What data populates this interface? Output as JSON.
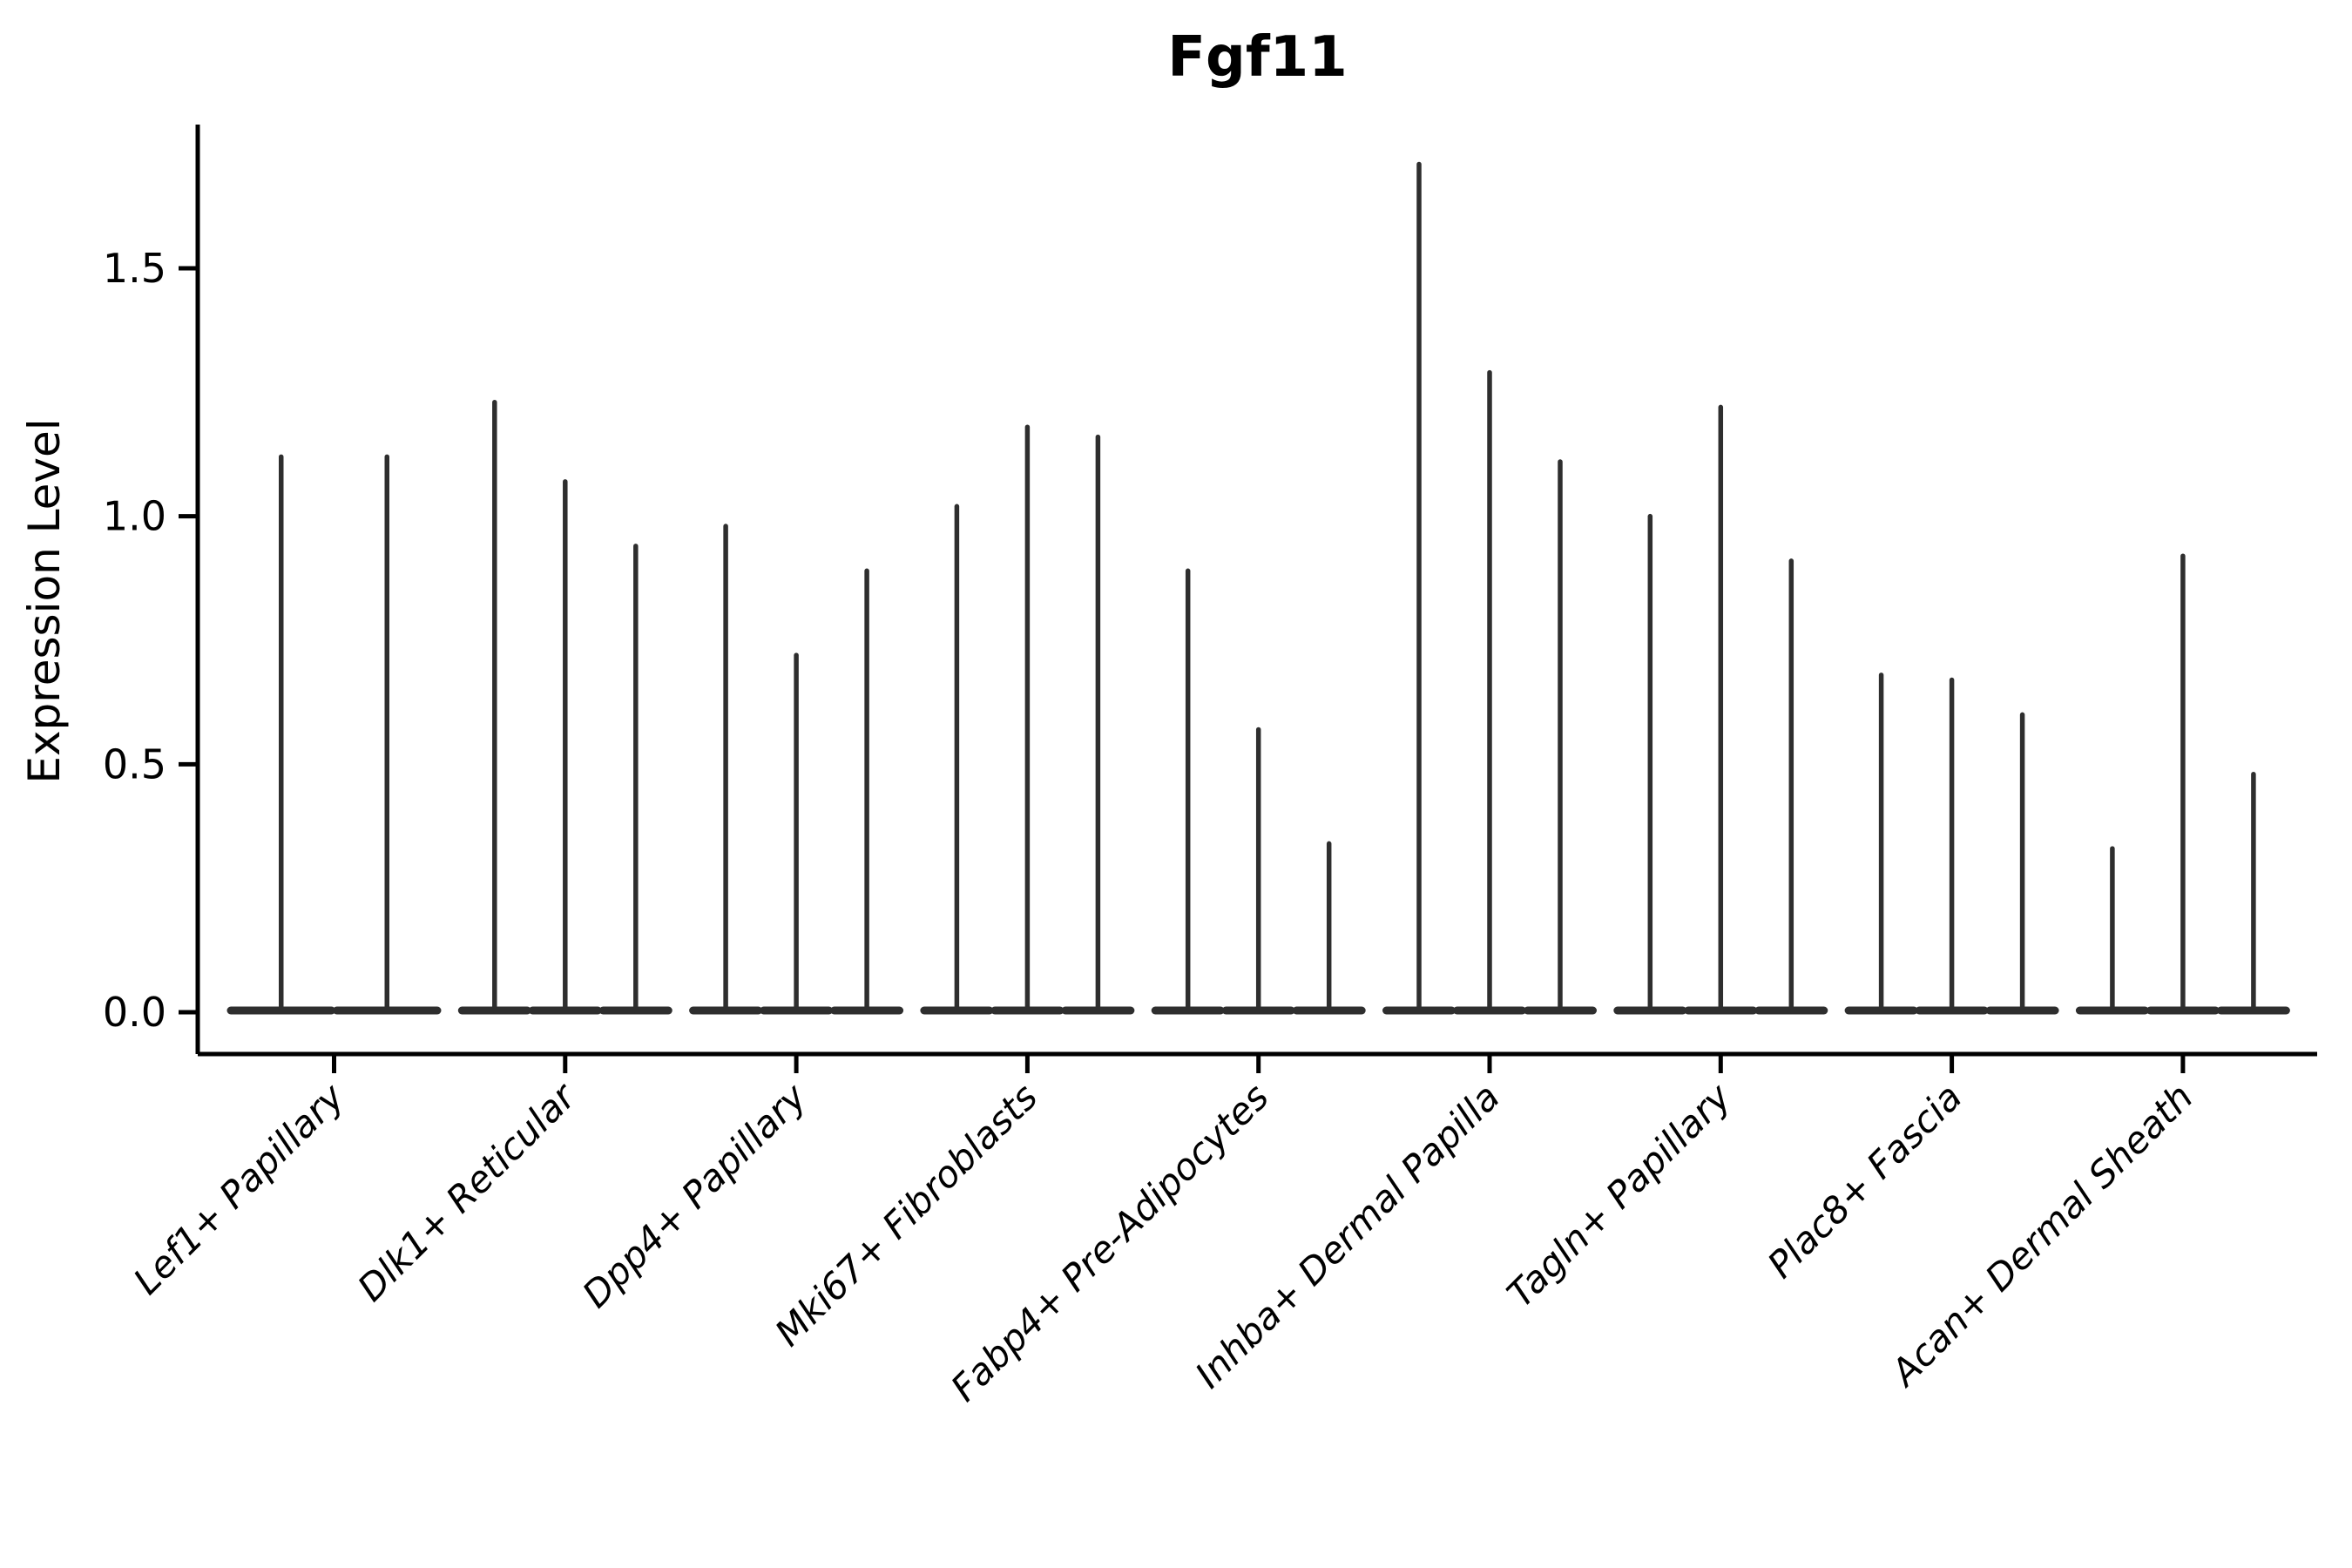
{
  "chart_data": {
    "type": "violin",
    "title": "Fgf11",
    "xlabel": "",
    "ylabel": "Expression Level",
    "ytick_labels": [
      "0.0",
      "0.5",
      "1.0",
      "1.5"
    ],
    "ytick_values": [
      0.0,
      0.5,
      1.0,
      1.5
    ],
    "ylim": [
      -0.084,
      1.79
    ],
    "grid": false,
    "legend": null,
    "x_tick_label_rotation_deg": 45,
    "x_tick_label_style": "italic",
    "violin_shape": "narrow density spike rising from a wide flat base at 0 (sparse expression)",
    "groups": [
      {
        "category": "Lef1+ Papillary",
        "violin_maxima": [
          1.12,
          1.12
        ]
      },
      {
        "category": "Dlk1+ Reticular",
        "violin_maxima": [
          1.23,
          1.07,
          0.94
        ]
      },
      {
        "category": "Dpp4+ Papillary",
        "violin_maxima": [
          0.98,
          0.72,
          0.89
        ]
      },
      {
        "category": "Mki67+ Fibroblasts",
        "violin_maxima": [
          1.02,
          1.18,
          1.16
        ]
      },
      {
        "category": "Fabp4+ Pre-Adipocytes",
        "violin_maxima": [
          0.89,
          0.57,
          0.34
        ]
      },
      {
        "category": "Inhba+ Dermal Papilla",
        "violin_maxima": [
          1.71,
          1.29,
          1.11
        ]
      },
      {
        "category": "Tagln+ Papillary",
        "violin_maxima": [
          1.0,
          1.22,
          0.91
        ]
      },
      {
        "category": "Plac8+ Fascia",
        "violin_maxima": [
          0.68,
          0.67,
          0.6
        ]
      },
      {
        "category": "Acan+ Dermal Sheath",
        "violin_maxima": [
          0.33,
          0.92,
          0.48
        ]
      }
    ],
    "colors": {
      "violin_stroke": "#2e2e2e",
      "axis": "#000000",
      "text": "#000000",
      "background": "#ffffff"
    }
  }
}
